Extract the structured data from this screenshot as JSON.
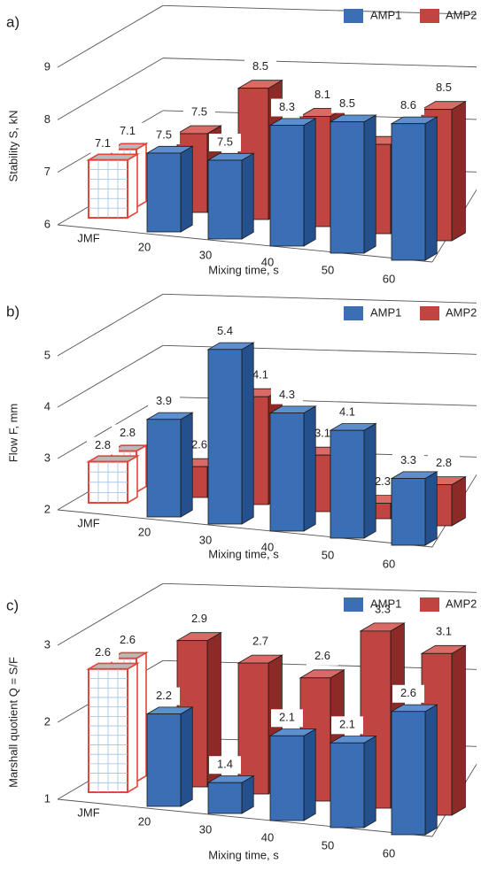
{
  "colors": {
    "amp1": "#3a6fb5",
    "amp1_top": "#5d8fce",
    "amp1_side": "#24518d",
    "amp2": "#c0443f",
    "amp2_top": "#d96a65",
    "amp2_side": "#8c2a27",
    "jmf_outline": "#e2453c",
    "jmf_grid": "#9fc0e3",
    "jmf_top": "#b9b9b9",
    "grid": "#555555"
  },
  "chart_data": [
    {
      "panel_label": "a)",
      "type": "bar",
      "categories": [
        "JMF",
        "20",
        "30",
        "40",
        "50",
        "60"
      ],
      "xlabel": "Mixing time, s",
      "ylabel": "Stability S, kN",
      "ylim": [
        6,
        9
      ],
      "yticks": [
        "6",
        "7",
        "8",
        "9"
      ],
      "legend_position": "top-right",
      "jmf": {
        "label": "JMF",
        "front": 7.1,
        "back": 7.1,
        "front_label": "7.1",
        "back_label": "7.1"
      },
      "series": [
        {
          "name": "AMP1",
          "values": [
            null,
            7.5,
            7.5,
            8.3,
            8.5,
            8.6
          ],
          "labels": [
            "",
            "7.5",
            "7.5",
            "8.3",
            "8.5",
            "8.6"
          ]
        },
        {
          "name": "AMP2",
          "values": [
            null,
            7.5,
            8.5,
            8.1,
            7.7,
            8.5
          ],
          "labels": [
            "",
            "7.5",
            "8.5",
            "8.1",
            "",
            "8.5"
          ]
        }
      ]
    },
    {
      "panel_label": "b)",
      "type": "bar",
      "categories": [
        "JMF",
        "20",
        "30",
        "40",
        "50",
        "60"
      ],
      "xlabel": "Mixing time, s",
      "ylabel": "Flow F, mm",
      "ylim": [
        2,
        5
      ],
      "yticks": [
        "2",
        "3",
        "4",
        "5"
      ],
      "legend_position": "top-right",
      "jmf": {
        "label": "JMF",
        "front": 2.8,
        "back": 2.8,
        "front_label": "2.8",
        "back_label": "2.8"
      },
      "series": [
        {
          "name": "AMP1",
          "values": [
            null,
            3.9,
            5.4,
            4.3,
            4.1,
            3.3
          ],
          "labels": [
            "",
            "3.9",
            "5.4",
            "4.3",
            "4.1",
            "3.3"
          ]
        },
        {
          "name": "AMP2",
          "values": [
            null,
            2.6,
            4.1,
            3.1,
            2.3,
            2.8
          ],
          "labels": [
            "",
            "2.6",
            "4.1",
            "3.1",
            "2.3",
            "2.8"
          ]
        }
      ]
    },
    {
      "panel_label": "c)",
      "type": "bar",
      "categories": [
        "JMF",
        "20",
        "30",
        "40",
        "50",
        "60"
      ],
      "xlabel": "Mixing time, s",
      "ylabel": "Marshall quotient Q = S/F",
      "ylim": [
        1,
        3
      ],
      "yticks": [
        "1",
        "2",
        "3"
      ],
      "legend_position": "top-right",
      "jmf": {
        "label": "JMF",
        "front": 2.6,
        "back": 2.6,
        "front_label": "2.6",
        "back_label": "2.6"
      },
      "series": [
        {
          "name": "AMP1",
          "values": [
            null,
            2.2,
            1.4,
            2.1,
            2.1,
            2.6
          ],
          "labels": [
            "",
            "2.2",
            "1.4",
            "2.1",
            "2.1",
            "2.6"
          ]
        },
        {
          "name": "AMP2",
          "values": [
            null,
            2.9,
            2.7,
            2.6,
            3.3,
            3.1
          ],
          "labels": [
            "",
            "2.9",
            "2.7",
            "2.6",
            "3.3",
            "3.1"
          ]
        }
      ]
    }
  ]
}
